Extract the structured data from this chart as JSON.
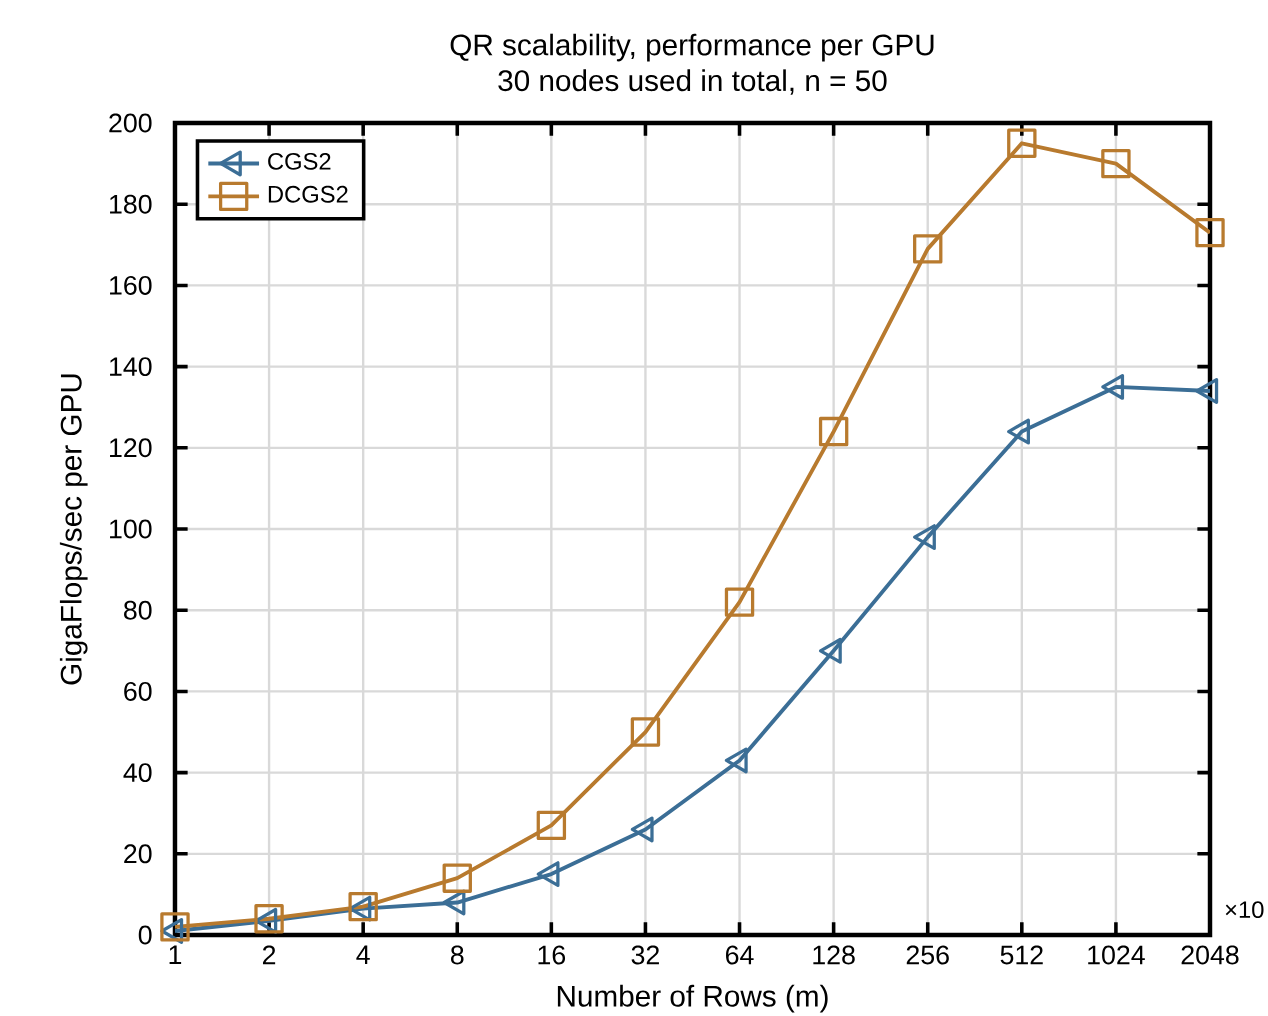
{
  "chart_data": {
    "type": "line",
    "title": "QR scalability, performance per GPU",
    "subtitle": "30 nodes used in total, n = 50",
    "xlabel": "Number of Rows (m)",
    "ylabel": "GigaFlops/sec per GPU",
    "x": [
      1,
      2,
      4,
      8,
      16,
      32,
      64,
      128,
      256,
      512,
      1024,
      2048
    ],
    "series": [
      {
        "name": "CGS2",
        "color": "#3b6e96",
        "marker": "triangle",
        "values": [
          1,
          3.5,
          6.5,
          8,
          15,
          26,
          43,
          70,
          98,
          124,
          135,
          134
        ]
      },
      {
        "name": "DCGS2",
        "color": "#b87a2e",
        "marker": "square",
        "values": [
          2,
          4,
          7,
          14,
          27,
          50,
          82,
          124,
          169,
          195,
          190,
          173
        ]
      }
    ],
    "log": "x",
    "xlim": [
      1,
      2048
    ],
    "xticks": [
      1,
      2,
      4,
      8,
      16,
      32,
      64,
      128,
      256,
      512,
      1024,
      2048
    ],
    "ylim": [
      0,
      200
    ],
    "yticks": [
      0,
      20,
      40,
      60,
      80,
      100,
      120,
      140,
      160,
      180,
      200
    ],
    "grid": true,
    "legend": "top left",
    "line_style": "solid",
    "annotations": [
      "×10"
    ]
  }
}
